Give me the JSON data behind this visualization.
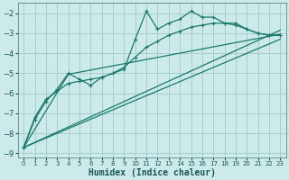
{
  "xlabel": "Humidex (Indice chaleur)",
  "bg_color": "#cceaea",
  "grid_color": "#aacccc",
  "line_color": "#1a7a6a",
  "xlim": [
    -0.5,
    23.5
  ],
  "ylim": [
    -9.2,
    -1.5
  ],
  "yticks": [
    -9,
    -8,
    -7,
    -6,
    -5,
    -4,
    -3,
    -2
  ],
  "xticks": [
    0,
    1,
    2,
    3,
    4,
    5,
    6,
    7,
    8,
    9,
    10,
    11,
    12,
    13,
    14,
    15,
    16,
    17,
    18,
    19,
    20,
    21,
    22,
    23
  ],
  "series_wiggly_x": [
    0,
    1,
    2,
    3,
    4,
    5,
    6,
    7,
    8,
    9,
    10,
    11,
    12,
    13,
    14,
    15,
    16,
    17,
    18,
    19,
    20,
    21,
    22,
    23
  ],
  "series_wiggly_y": [
    -8.7,
    -7.3,
    -6.4,
    -5.8,
    -5.0,
    -5.3,
    -5.6,
    -5.2,
    -5.0,
    -4.8,
    -3.3,
    -1.9,
    -2.8,
    -2.5,
    -2.3,
    -1.9,
    -2.2,
    -2.2,
    -2.5,
    -2.5,
    -2.8,
    -3.0,
    -3.1,
    -3.1
  ],
  "series_smooth_x": [
    0,
    1,
    2,
    3,
    4,
    5,
    6,
    7,
    8,
    9,
    10,
    11,
    12,
    13,
    14,
    15,
    16,
    17,
    18,
    19,
    20,
    21,
    22,
    23
  ],
  "series_smooth_y": [
    -8.7,
    -7.2,
    -6.3,
    -5.9,
    -5.5,
    -5.4,
    -5.3,
    -5.2,
    -5.0,
    -4.7,
    -4.2,
    -3.7,
    -3.4,
    -3.1,
    -2.9,
    -2.7,
    -2.6,
    -2.5,
    -2.5,
    -2.6,
    -2.8,
    -3.0,
    -3.1,
    -3.1
  ],
  "line1_x": [
    0,
    23
  ],
  "line1_y": [
    -8.7,
    -2.85
  ],
  "line2_x": [
    0,
    23
  ],
  "line2_y": [
    -8.7,
    -3.3
  ],
  "line3_x": [
    0,
    4,
    23
  ],
  "line3_y": [
    -8.7,
    -5.05,
    -3.05
  ]
}
